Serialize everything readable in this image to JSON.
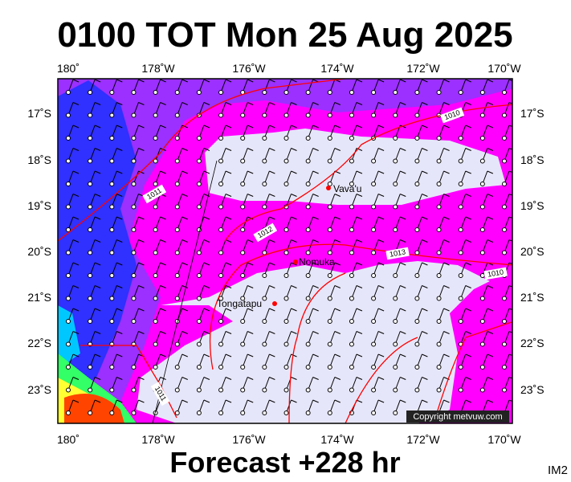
{
  "title": "0100 TOT Mon 25 Aug 2025",
  "footer": "Forecast +228 hr",
  "corner_label": "IM2",
  "copyright": "Copyright metvuw.com",
  "lon_labels_top": [
    "180˚",
    "178˚W",
    "176˚W",
    "174˚W",
    "172˚W",
    "170˚W"
  ],
  "lon_labels_bottom": [
    "180˚",
    "178˚W",
    "176˚W",
    "174˚W",
    "172˚W",
    "170˚W"
  ],
  "lat_labels_left": [
    "17˚S",
    "18˚S",
    "19˚S",
    "20˚S",
    "21˚S",
    "22˚S",
    "23˚S"
  ],
  "lat_labels_right": [
    "17˚S",
    "18˚S",
    "19˚S",
    "20˚S",
    "21˚S",
    "22˚S",
    "23˚S"
  ],
  "places": [
    "Vava'u",
    "Nomuka",
    "Tongatapu"
  ],
  "isobar_labels": [
    "1010",
    "1011",
    "1012",
    "1013",
    "1010",
    "1011"
  ]
}
